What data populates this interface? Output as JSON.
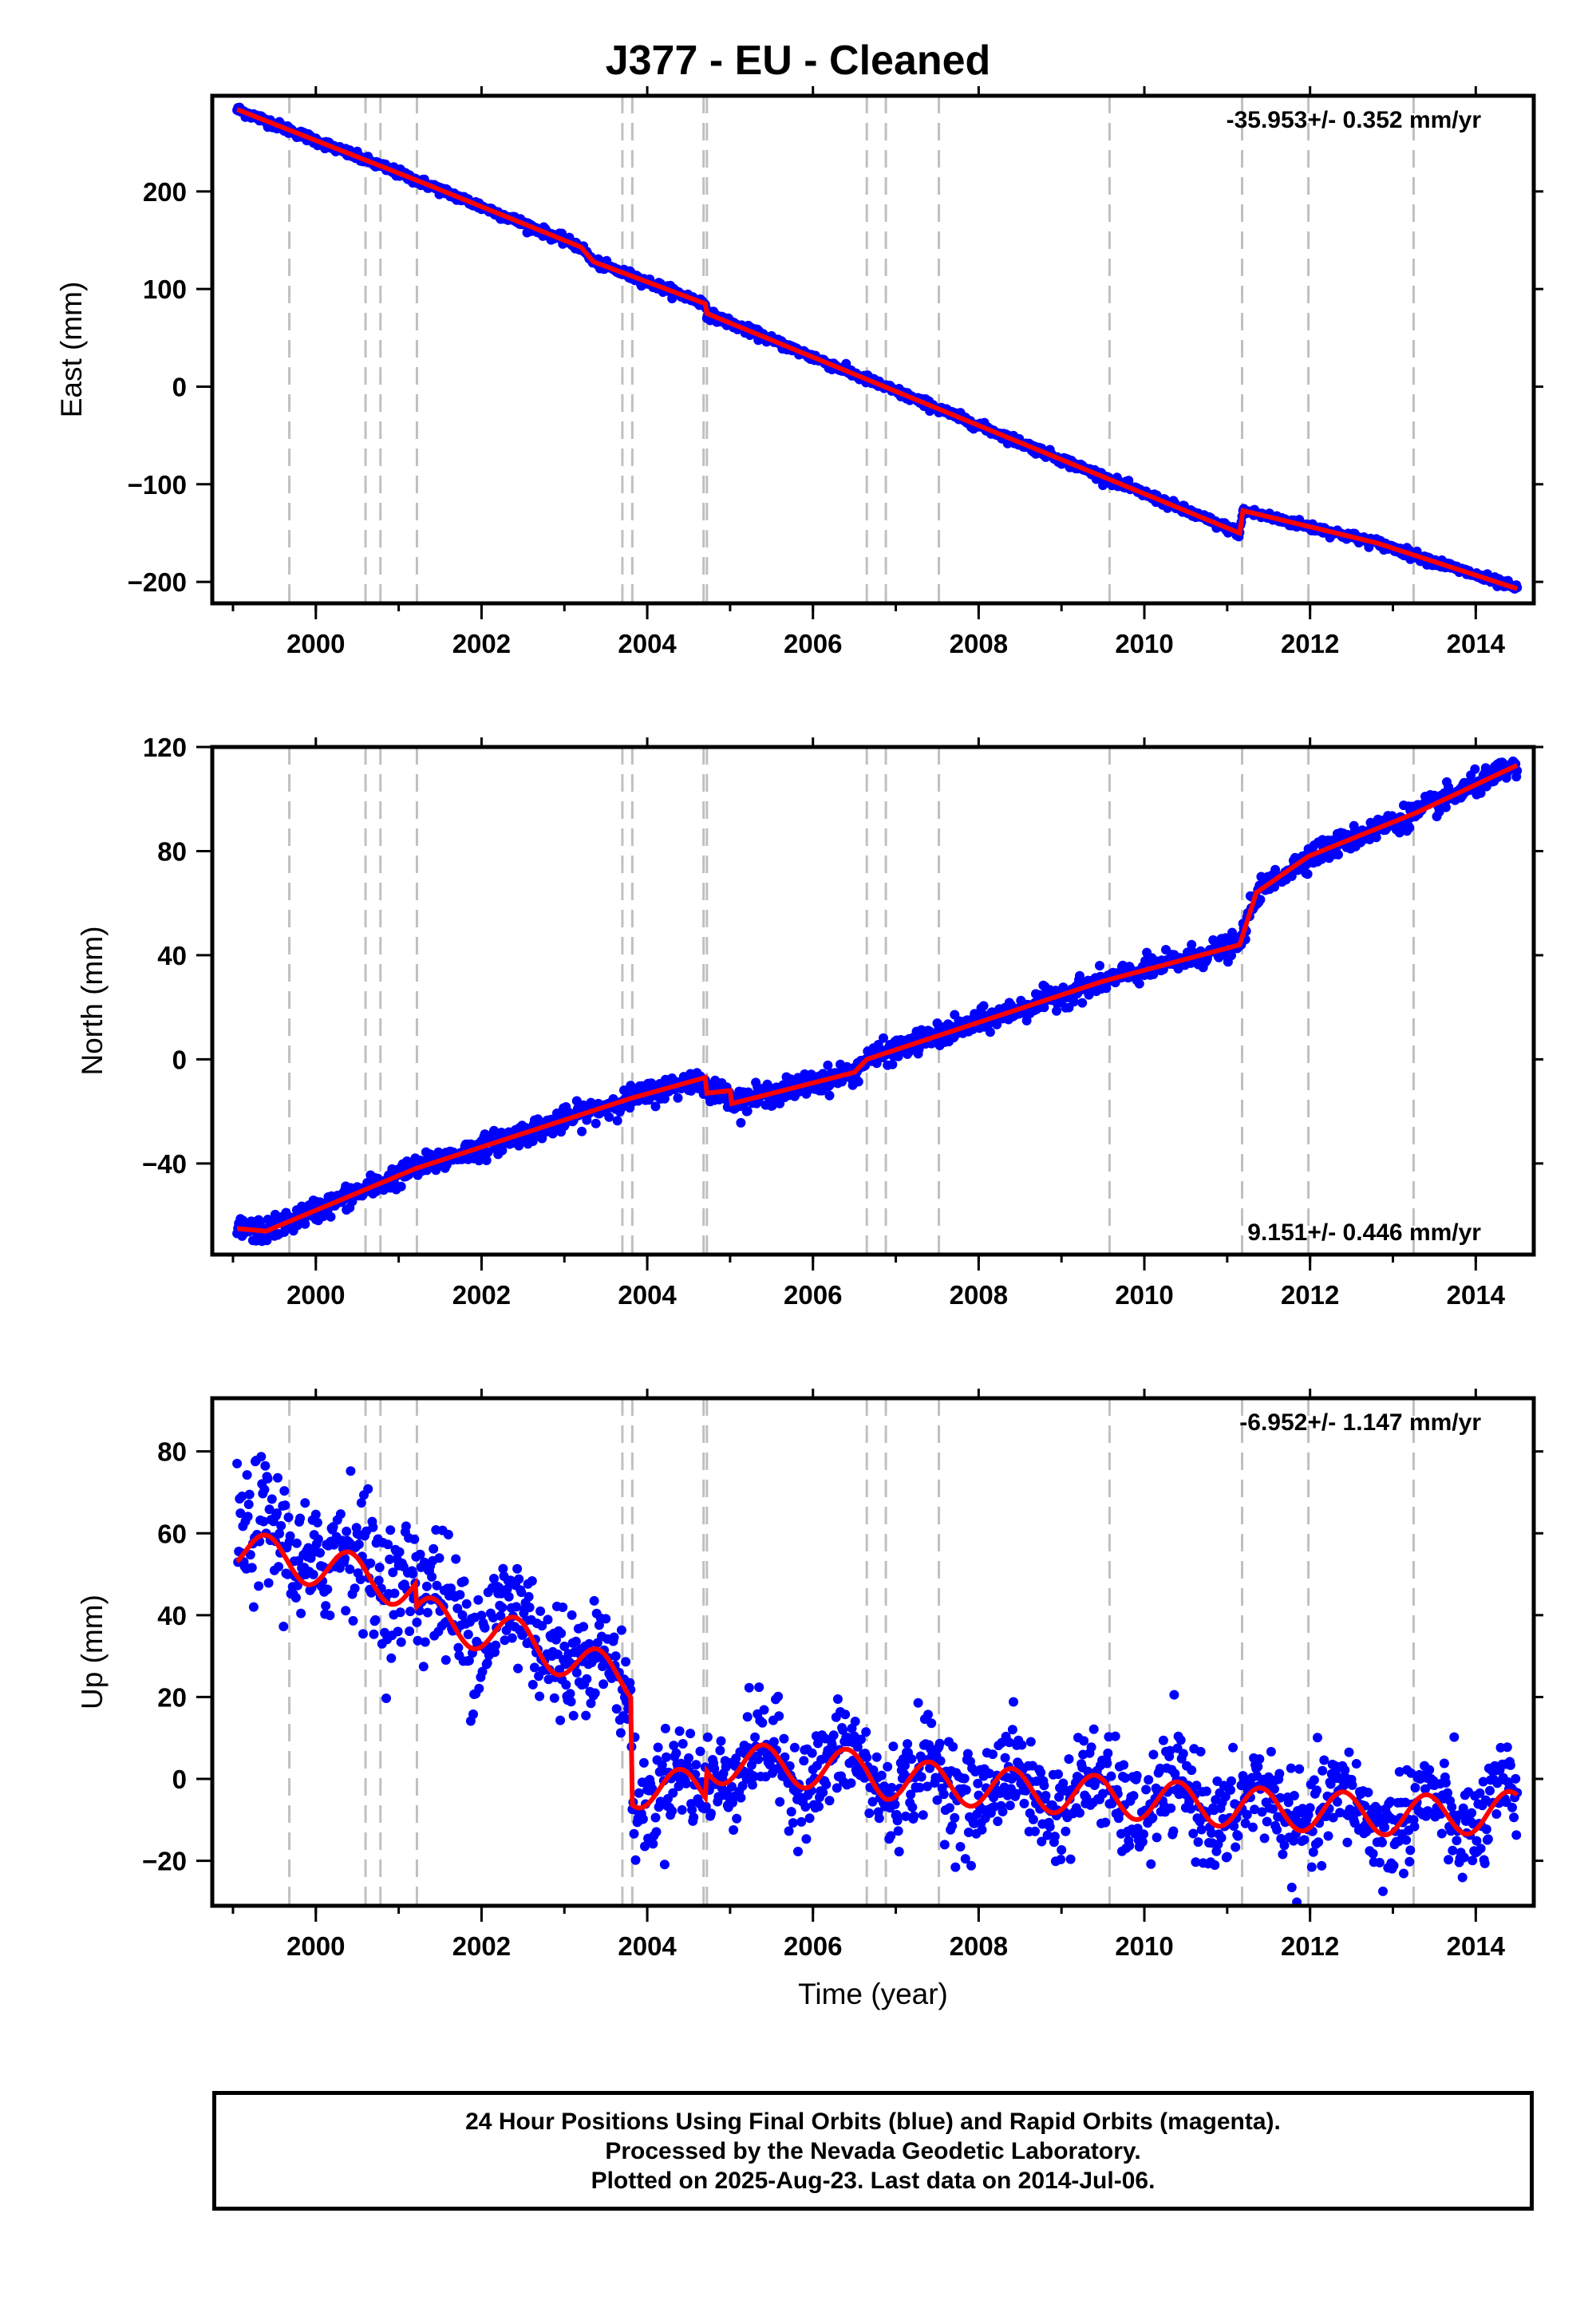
{
  "title": "J377  - EU - Cleaned",
  "footer": {
    "line1": "24 Hour Positions Using Final Orbits (blue) and Rapid Orbits (magenta).",
    "line2": "Processed by the Nevada Geodetic Laboratory.",
    "line3": "Plotted on 2025-Aug-23. Last data on 2014-Jul-06."
  },
  "colors": {
    "data_points": "#0000ff",
    "model": "#ff0000",
    "steps": "#c0c0c0"
  },
  "chart_data": [
    {
      "type": "scatter",
      "name": "east",
      "ylabel": "East (mm)",
      "xlabel": "",
      "rate_label": "-35.953+/- 0.352 mm/yr",
      "rate_position": "top-right",
      "xlim": [
        1998.75,
        2014.7
      ],
      "ylim": [
        -222,
        298
      ],
      "xticks": [
        2000,
        2002,
        2004,
        2006,
        2008,
        2010,
        2012,
        2014
      ],
      "yticks": [
        -200,
        -100,
        0,
        100,
        200
      ],
      "ytick_labels": [
        "−200",
        "−100",
        "0",
        "100",
        "200"
      ],
      "step_dates": [
        1999.68,
        2000.6,
        2000.78,
        2001.22,
        2003.7,
        2003.82,
        2004.68,
        2004.72,
        2006.65,
        2006.88,
        2007.52,
        2009.58,
        2011.18,
        2011.98,
        2013.25
      ],
      "model_knots": [
        [
          1999.05,
          284
        ],
        [
          2001.2,
          212
        ],
        [
          2003.2,
          143
        ],
        [
          2003.35,
          128
        ],
        [
          2004.7,
          85
        ],
        [
          2004.72,
          75
        ],
        [
          2011.15,
          -150
        ],
        [
          2011.19,
          -127
        ],
        [
          2012.8,
          -160
        ],
        [
          2014.5,
          -207
        ]
      ],
      "scatter_sd": 2.2,
      "grid": false
    },
    {
      "type": "scatter",
      "name": "north",
      "ylabel": "North (mm)",
      "xlabel": "",
      "rate_label": "9.151+/- 0.446 mm/yr",
      "rate_position": "bottom-right",
      "xlim": [
        1998.75,
        2014.7
      ],
      "ylim": [
        -75,
        120
      ],
      "xticks": [
        2000,
        2002,
        2004,
        2006,
        2008,
        2010,
        2012,
        2014
      ],
      "yticks": [
        -40,
        0,
        40,
        80,
        120
      ],
      "ytick_labels": [
        "−40",
        "0",
        "40",
        "80",
        "120"
      ],
      "step_dates": [
        1999.68,
        2000.6,
        2000.78,
        2001.22,
        2003.7,
        2003.82,
        2004.68,
        2004.72,
        2006.65,
        2006.88,
        2007.52,
        2009.58,
        2011.18,
        2011.98,
        2013.25
      ],
      "model_knots": [
        [
          1999.05,
          -65
        ],
        [
          1999.4,
          -66
        ],
        [
          2001.2,
          -42
        ],
        [
          2003.8,
          -15
        ],
        [
          2004.7,
          -7
        ],
        [
          2004.72,
          -13
        ],
        [
          2005.0,
          -12
        ],
        [
          2005.02,
          -17
        ],
        [
          2006.5,
          -5
        ],
        [
          2006.65,
          0
        ],
        [
          2009.5,
          30
        ],
        [
          2011.15,
          44
        ],
        [
          2011.35,
          64
        ],
        [
          2011.98,
          78
        ],
        [
          2013.3,
          95
        ],
        [
          2014.5,
          113
        ]
      ],
      "scatter_sd": 2.2,
      "grid": false
    },
    {
      "type": "scatter",
      "name": "up",
      "ylabel": "Up (mm)",
      "xlabel": "Time (year)",
      "rate_label": "-6.952+/- 1.147 mm/yr",
      "rate_position": "top-right",
      "xlim": [
        1998.75,
        2014.7
      ],
      "ylim": [
        -31,
        93
      ],
      "xticks": [
        2000,
        2002,
        2004,
        2006,
        2008,
        2010,
        2012,
        2014
      ],
      "yticks": [
        -20,
        0,
        20,
        40,
        60,
        80
      ],
      "ytick_labels": [
        "−20",
        "0",
        "20",
        "40",
        "60",
        "80"
      ],
      "step_dates": [
        1999.68,
        2000.6,
        2000.78,
        2001.22,
        2003.7,
        2003.82,
        2004.68,
        2004.72,
        2006.65,
        2006.88,
        2007.52,
        2009.58,
        2011.18,
        2011.98,
        2013.25
      ],
      "model_knots": [
        [
          1999.05,
          56
        ],
        [
          2000.5,
          50
        ],
        [
          2001.2,
          46
        ],
        [
          2001.22,
          40
        ],
        [
          2002.5,
          34
        ],
        [
          2003.2,
          28
        ],
        [
          2003.8,
          24
        ],
        [
          2003.82,
          -2
        ],
        [
          2004.7,
          -3
        ],
        [
          2004.72,
          4
        ],
        [
          2006.65,
          2
        ],
        [
          2006.88,
          0
        ],
        [
          2011.18,
          -7
        ],
        [
          2013.25,
          -9
        ],
        [
          2014.5,
          -8
        ]
      ],
      "model_annual_amplitude": 5,
      "data_break": 2003.1,
      "data_before": {
        "level_offset": 3,
        "sd": 8
      },
      "data_after": {
        "sd": 6
      },
      "grid": false
    }
  ]
}
